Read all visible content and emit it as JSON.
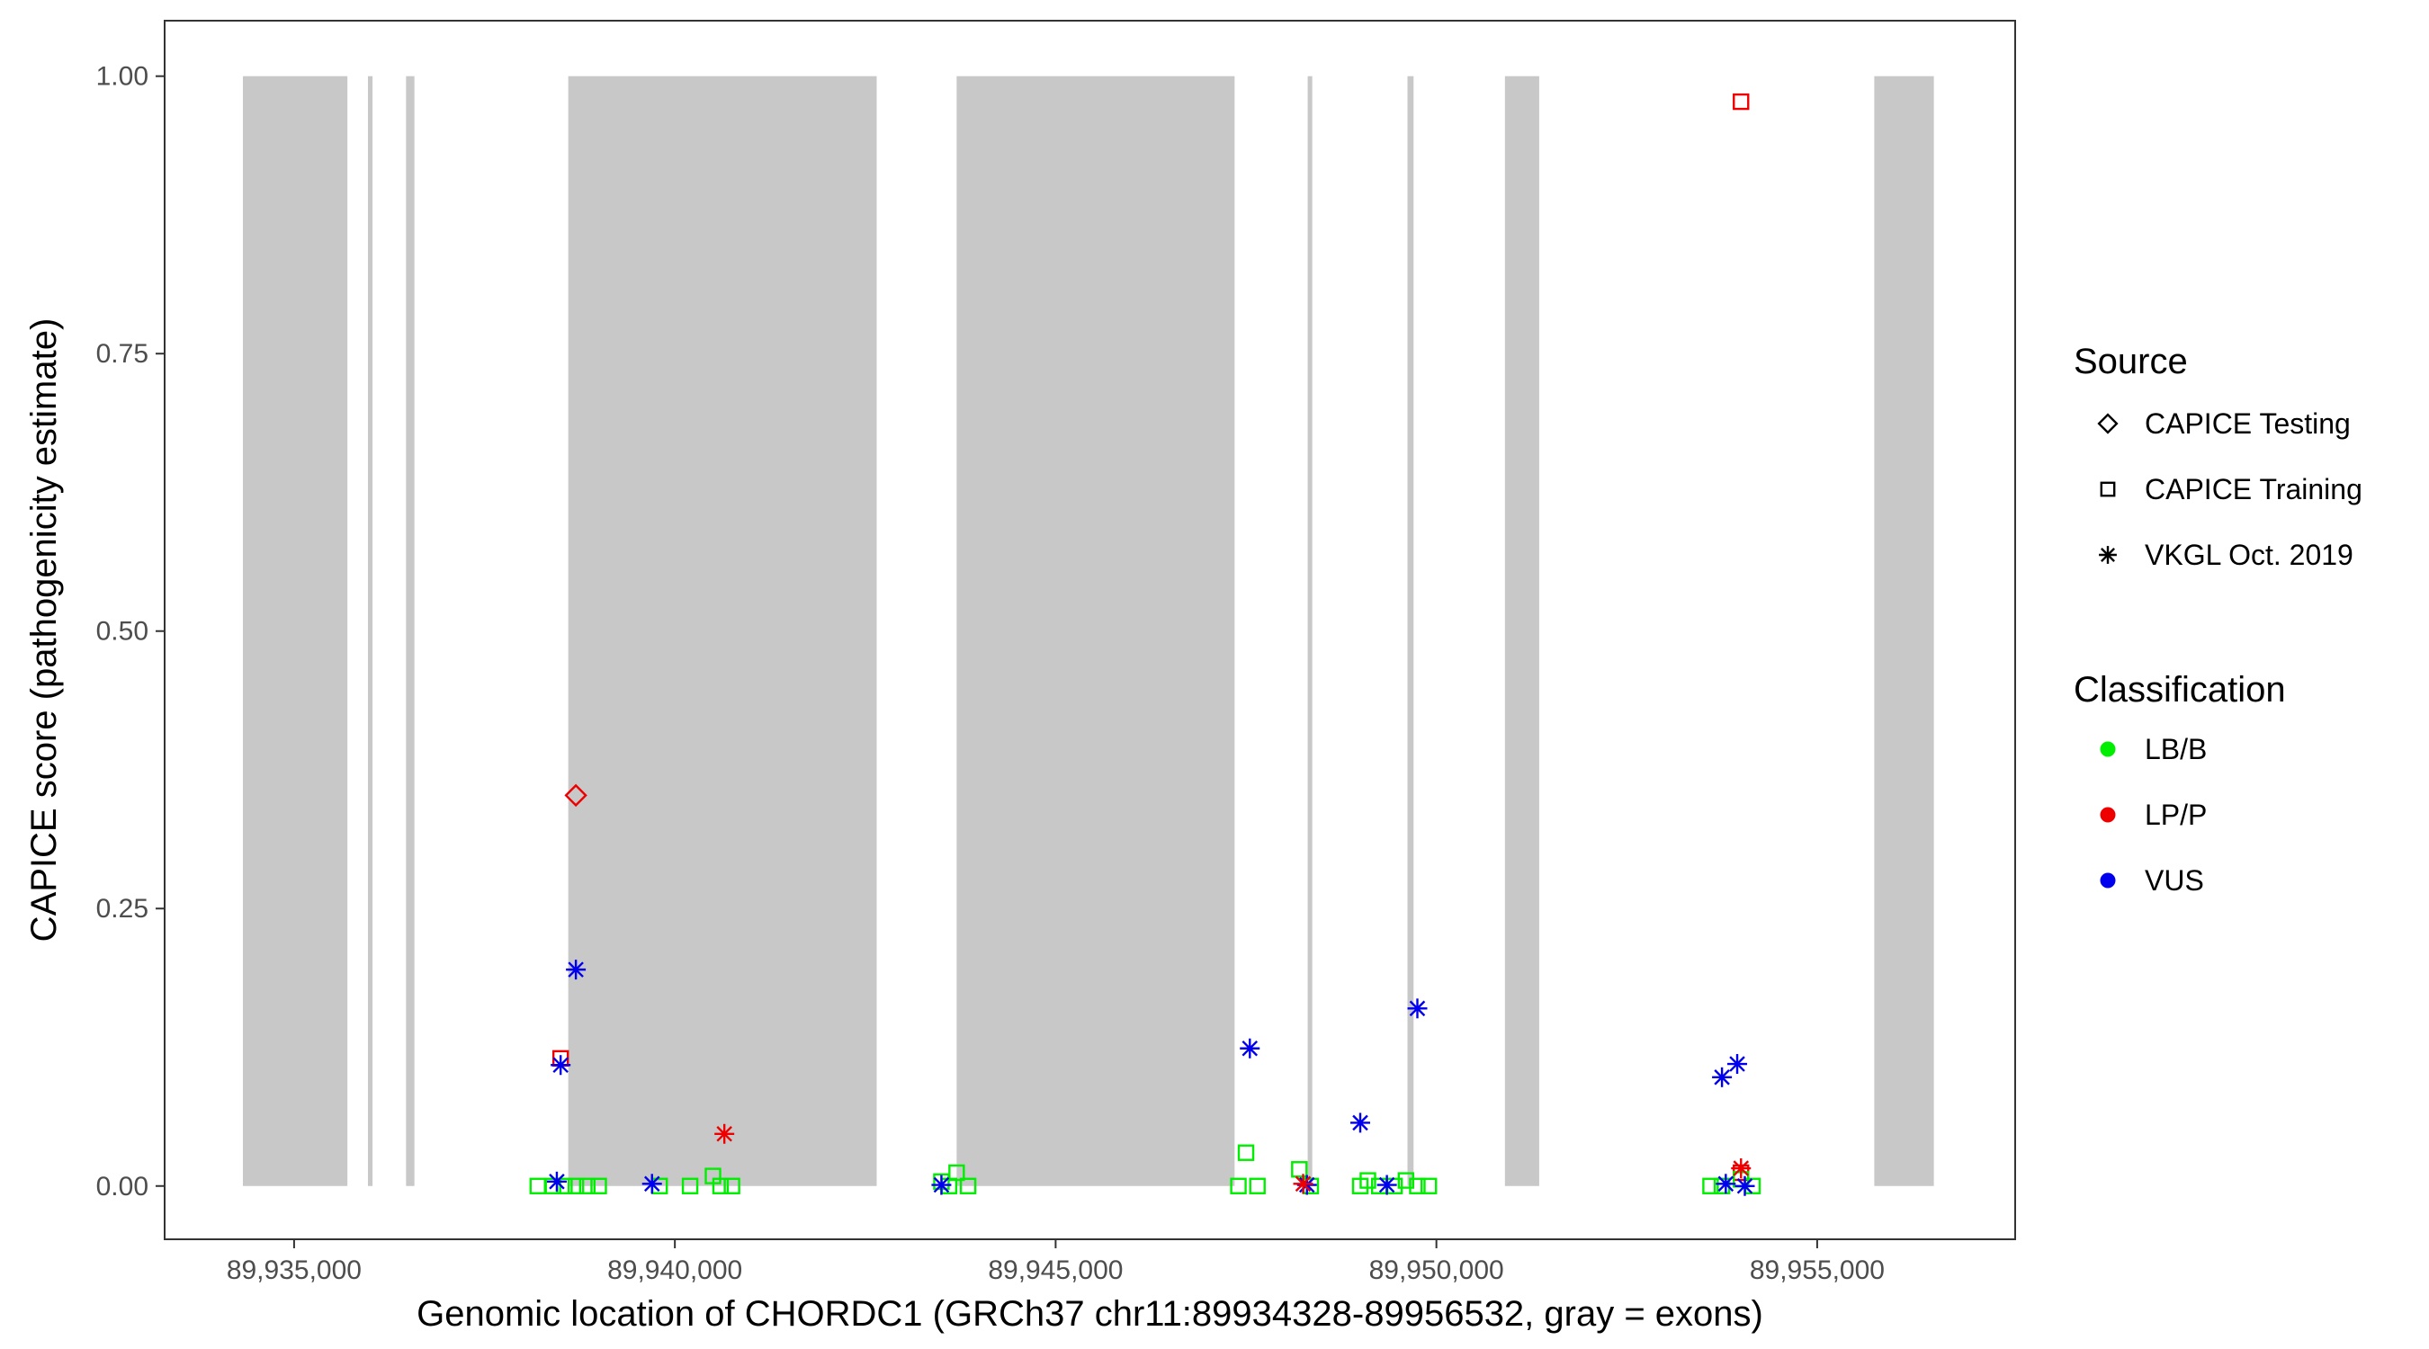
{
  "chart_data": {
    "type": "scatter",
    "title": "",
    "xlabel": "Genomic location of CHORDC1 (GRCh37 chr11:89934328-89956532, gray = exons)",
    "ylabel": "CAPICE score (pathogenicity estimate)",
    "xlim": [
      89933300,
      89957600
    ],
    "ylim": [
      -0.048,
      1.05
    ],
    "x_ticks": [
      89935000,
      89940000,
      89945000,
      89950000,
      89955000
    ],
    "x_tick_labels": [
      "89,935,000",
      "89,940,000",
      "89,945,000",
      "89,950,000",
      "89,955,000"
    ],
    "y_ticks": [
      0,
      0.25,
      0.5,
      0.75,
      1.0
    ],
    "y_tick_labels": [
      "0.00",
      "0.25",
      "0.50",
      "0.75",
      "1.00"
    ],
    "grid": false,
    "exon_color": "#c8c8c8",
    "exons": [
      [
        89934328,
        89935700
      ],
      [
        89935970,
        89936030
      ],
      [
        89936470,
        89936580
      ],
      [
        89938600,
        89942650
      ],
      [
        89943700,
        89947350
      ],
      [
        89948310,
        89948370
      ],
      [
        89949620,
        89949700
      ],
      [
        89950900,
        89951350
      ],
      [
        89955750,
        89956532
      ]
    ],
    "legend": {
      "placement": "right",
      "source_title": "Source",
      "source_items": [
        {
          "label": "CAPICE Testing",
          "shape": "diamond"
        },
        {
          "label": "CAPICE Training",
          "shape": "square"
        },
        {
          "label": "VKGL Oct. 2019",
          "shape": "asterisk"
        }
      ],
      "class_title": "Classification",
      "class_items": [
        {
          "label": "LB/B",
          "color": "#00ee00"
        },
        {
          "label": "LP/P",
          "color": "#ee0000"
        },
        {
          "label": "VUS",
          "color": "#0000ee"
        }
      ]
    },
    "series": [
      {
        "source": "CAPICE Testing",
        "classification": "LP/P",
        "points": [
          [
            89938700,
            0.352
          ]
        ]
      },
      {
        "source": "CAPICE Training",
        "classification": "LP/P",
        "points": [
          [
            89938500,
            0.115
          ],
          [
            89954000,
            0.977
          ],
          [
            89954000,
            0.012
          ]
        ]
      },
      {
        "source": "CAPICE Training",
        "classification": "LB/B",
        "points": [
          [
            89938200,
            0.0
          ],
          [
            89938400,
            0.0
          ],
          [
            89938550,
            0.0
          ],
          [
            89938700,
            0.0
          ],
          [
            89938850,
            0.0
          ],
          [
            89939000,
            0.0
          ],
          [
            89939800,
            0.0
          ],
          [
            89940200,
            0.0
          ],
          [
            89940500,
            0.009
          ],
          [
            89940600,
            0.0
          ],
          [
            89940750,
            0.0
          ],
          [
            89943500,
            0.004
          ],
          [
            89943600,
            0.0
          ],
          [
            89943700,
            0.012
          ],
          [
            89943850,
            0.0
          ],
          [
            89947400,
            0.0
          ],
          [
            89947500,
            0.03
          ],
          [
            89947650,
            0.0
          ],
          [
            89948200,
            0.015
          ],
          [
            89948350,
            0.0
          ],
          [
            89949000,
            0.0
          ],
          [
            89949100,
            0.005
          ],
          [
            89949250,
            0.0
          ],
          [
            89949450,
            0.0
          ],
          [
            89949600,
            0.005
          ],
          [
            89949750,
            0.0
          ],
          [
            89949900,
            0.0
          ],
          [
            89953600,
            0.0
          ],
          [
            89953750,
            0.0
          ],
          [
            89954000,
            0.006
          ],
          [
            89954150,
            0.0
          ]
        ]
      },
      {
        "source": "VKGL Oct. 2019",
        "classification": "VUS",
        "points": [
          [
            89938450,
            0.004
          ],
          [
            89938500,
            0.109
          ],
          [
            89938700,
            0.195
          ],
          [
            89939700,
            0.002
          ],
          [
            89943500,
            0.001
          ],
          [
            89947550,
            0.124
          ],
          [
            89948300,
            0.001
          ],
          [
            89949000,
            0.057
          ],
          [
            89949350,
            0.001
          ],
          [
            89949750,
            0.16
          ],
          [
            89953750,
            0.098
          ],
          [
            89953800,
            0.002
          ],
          [
            89953950,
            0.11
          ],
          [
            89954050,
            0.0
          ]
        ]
      },
      {
        "source": "VKGL Oct. 2019",
        "classification": "LP/P",
        "points": [
          [
            89940650,
            0.047
          ],
          [
            89948250,
            0.002
          ],
          [
            89954000,
            0.016
          ]
        ]
      }
    ]
  }
}
